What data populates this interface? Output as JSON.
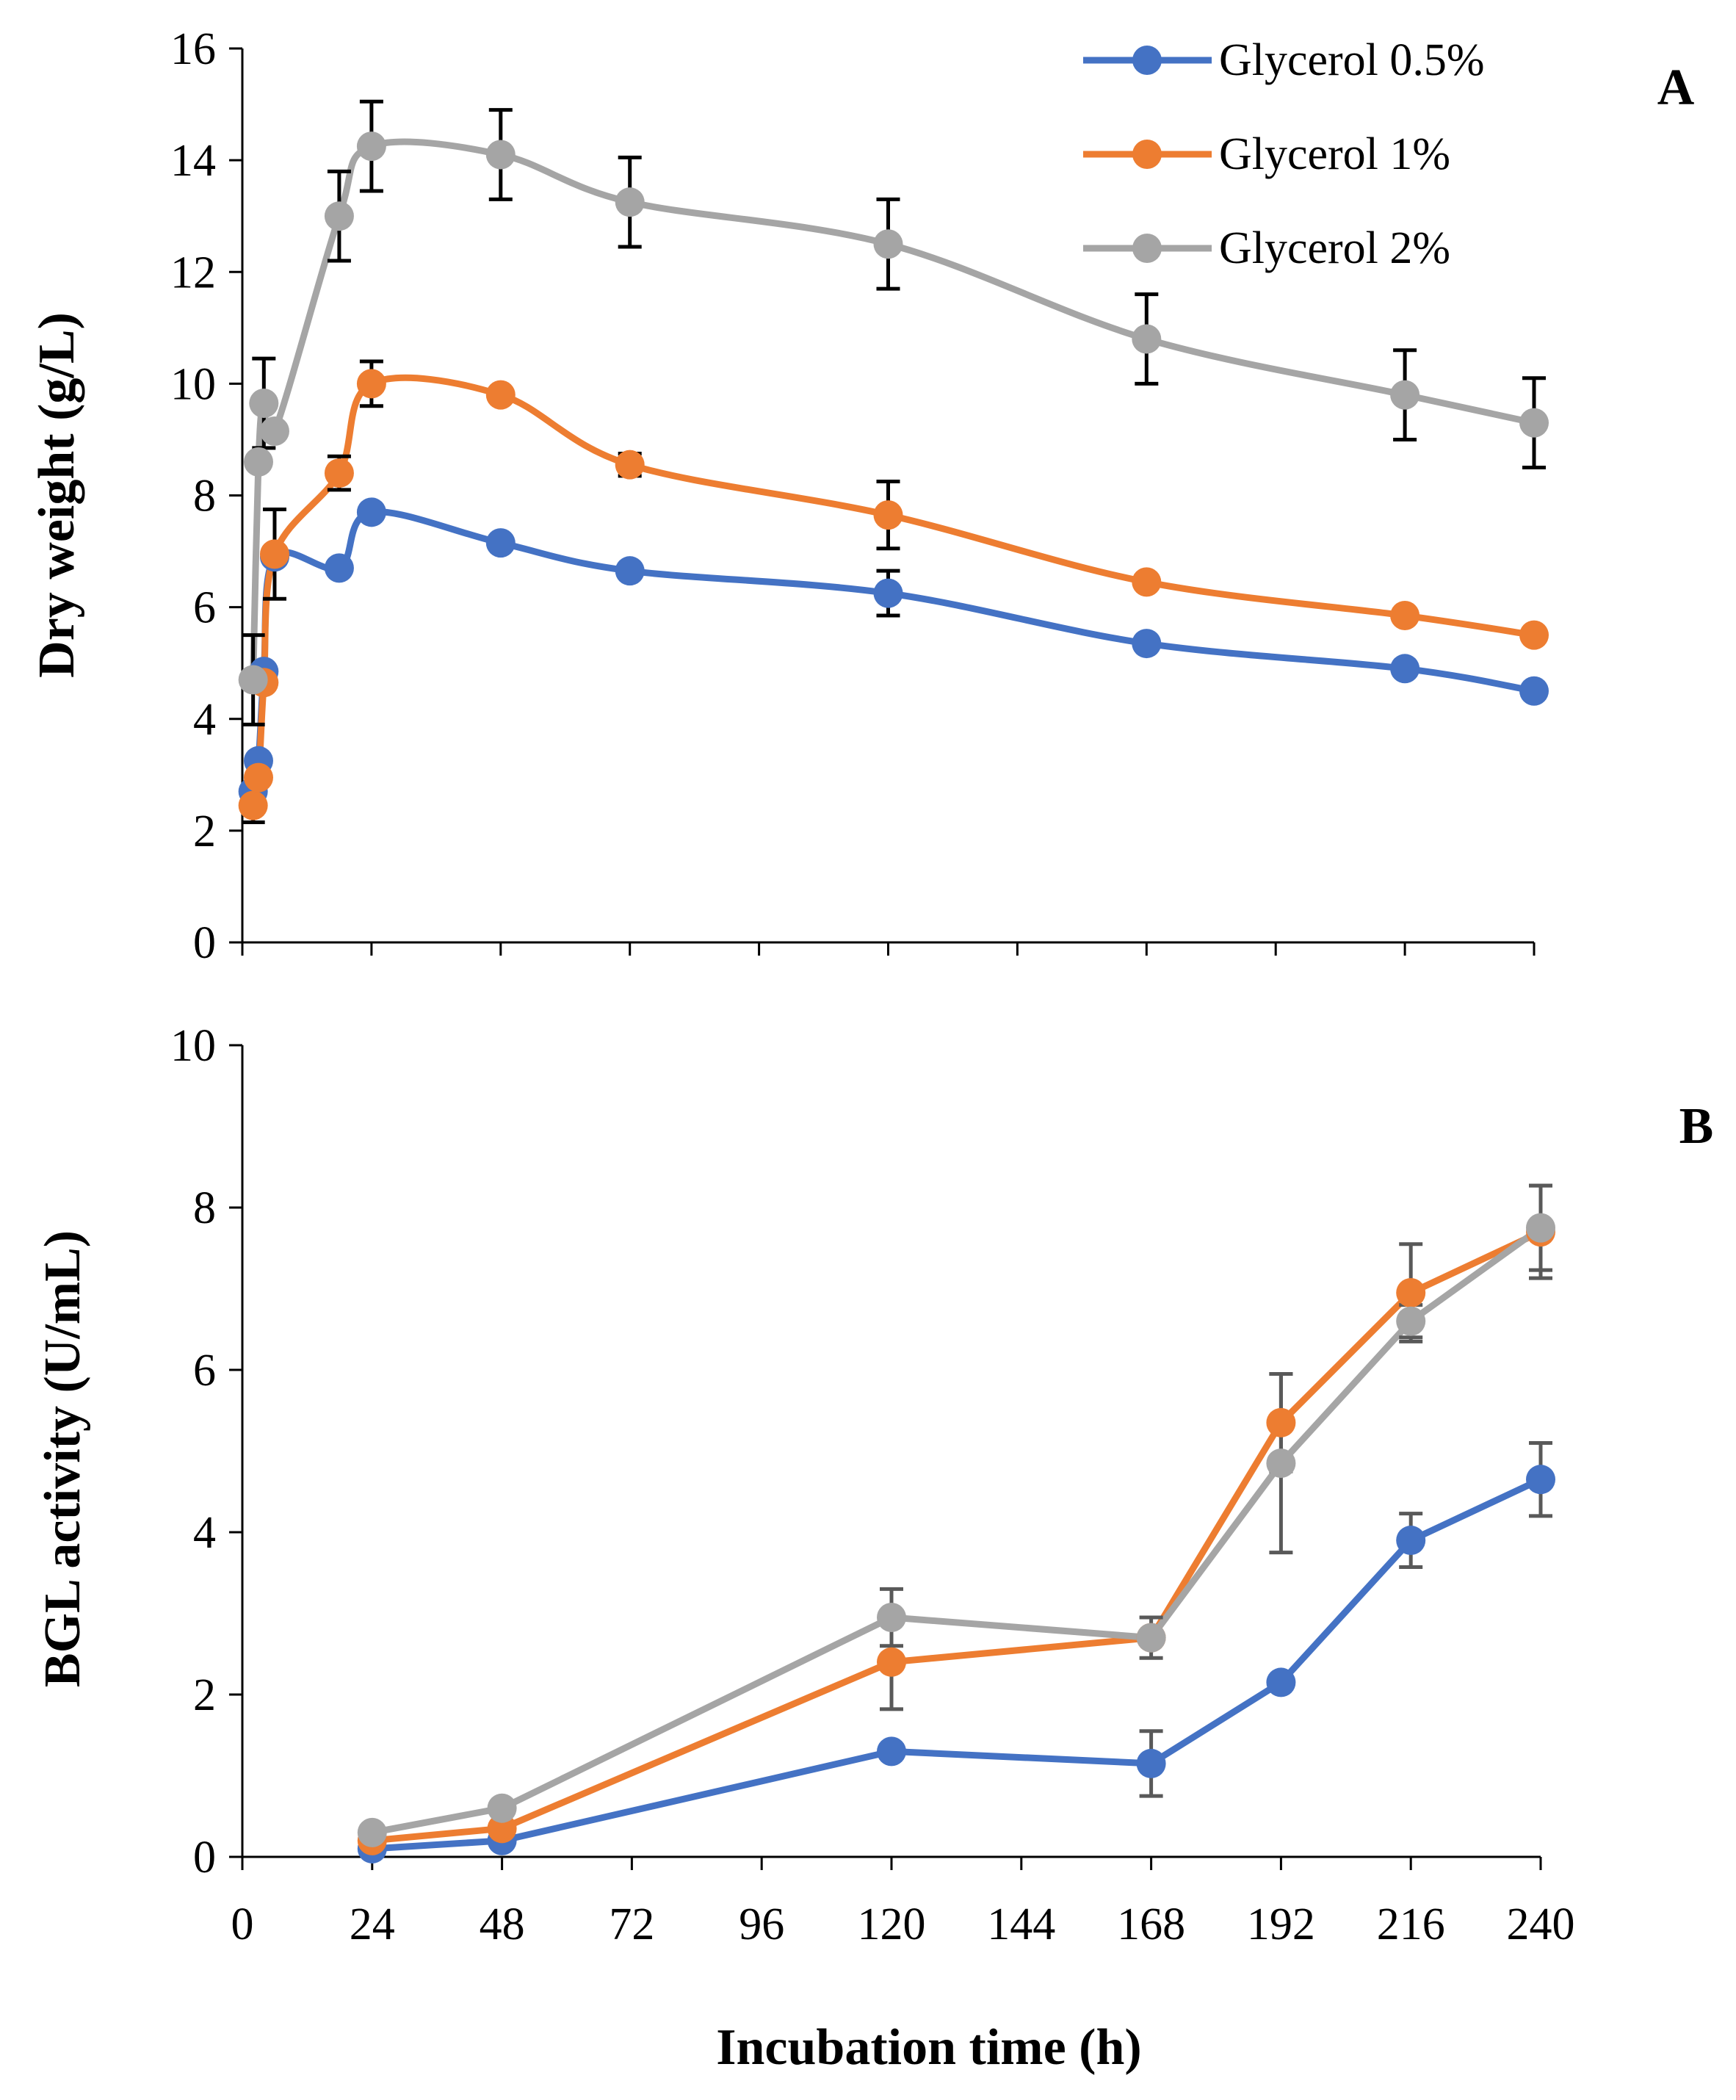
{
  "colors": {
    "series_0": "#4472C4",
    "series_1": "#ED7D31",
    "series_2": "#A5A5A5",
    "errorbar_A": "#000000",
    "errorbar_B": "#595959"
  },
  "chart_data": [
    {
      "panel": "A",
      "type": "line",
      "title": "",
      "xlabel": "",
      "ylabel": "Dry weight  (g/L)",
      "ylim": [
        0,
        16
      ],
      "yticks": [
        "0",
        "2",
        "4",
        "6",
        "8",
        "10",
        "12",
        "14",
        "16"
      ],
      "xlim": [
        0,
        240
      ],
      "legend": {
        "position": "top-right"
      },
      "series": [
        {
          "name": "Glycerol 0.5%",
          "x": [
            2,
            3,
            4,
            6,
            18,
            24,
            48,
            72,
            120,
            168,
            216,
            240
          ],
          "y": [
            2.7,
            3.25,
            4.85,
            6.9,
            6.7,
            7.7,
            7.15,
            6.65,
            6.25,
            5.35,
            4.9,
            4.5
          ],
          "err": [
            0,
            0,
            0,
            0,
            0,
            0,
            0,
            0,
            0.4,
            0,
            0,
            0
          ]
        },
        {
          "name": "Glycerol 1%",
          "x": [
            2,
            3,
            4,
            6,
            18,
            24,
            48,
            72,
            120,
            168,
            216,
            240
          ],
          "y": [
            2.45,
            2.95,
            4.65,
            6.95,
            8.4,
            10.0,
            9.8,
            8.55,
            7.65,
            6.45,
            5.85,
            5.5
          ],
          "err": [
            0.3,
            0,
            0,
            0.8,
            0.3,
            0.4,
            0,
            0.2,
            0.6,
            0,
            0,
            0
          ]
        },
        {
          "name": "Glycerol 2%",
          "x": [
            2,
            3,
            4,
            6,
            18,
            24,
            48,
            72,
            120,
            168,
            216,
            240
          ],
          "y": [
            4.7,
            8.6,
            9.65,
            9.15,
            13.0,
            14.25,
            14.1,
            13.25,
            12.5,
            10.8,
            9.8,
            9.3
          ],
          "err": [
            0.8,
            0,
            0.8,
            0,
            0.8,
            0.8,
            0.8,
            0.8,
            0.8,
            0.8,
            0.8,
            0.8
          ]
        }
      ]
    },
    {
      "panel": "B",
      "type": "line",
      "title": "",
      "xlabel": "Incubation time (h)",
      "ylabel": "BGL activity  (U/mL)",
      "ylim": [
        0,
        10
      ],
      "yticks": [
        "0",
        "2",
        "4",
        "6",
        "8",
        "10"
      ],
      "xlim": [
        0,
        240
      ],
      "xticks": [
        "0",
        "24",
        "48",
        "72",
        "96",
        "120",
        "144",
        "168",
        "192",
        "216",
        "240"
      ],
      "series": [
        {
          "name": "Glycerol 0.5%",
          "x": [
            24,
            48,
            120,
            168,
            192,
            216,
            240
          ],
          "y": [
            0.1,
            0.2,
            1.3,
            1.15,
            2.15,
            3.9,
            4.65
          ],
          "err": [
            0,
            0,
            0,
            0.4,
            0,
            0.33,
            0.45
          ]
        },
        {
          "name": "Glycerol 1%",
          "x": [
            24,
            48,
            120,
            168,
            192,
            216,
            240
          ],
          "y": [
            0.2,
            0.35,
            2.4,
            2.7,
            5.35,
            6.95,
            7.7
          ],
          "err": [
            0,
            0,
            0.58,
            0,
            0.6,
            0.6,
            0.57
          ]
        },
        {
          "name": "Glycerol 2%",
          "x": [
            24,
            48,
            120,
            168,
            192,
            216,
            240
          ],
          "y": [
            0.3,
            0.6,
            2.95,
            2.7,
            4.85,
            6.6,
            7.75
          ],
          "err": [
            0,
            0,
            0.35,
            0.25,
            1.1,
            0.2,
            0.52
          ]
        }
      ]
    }
  ]
}
